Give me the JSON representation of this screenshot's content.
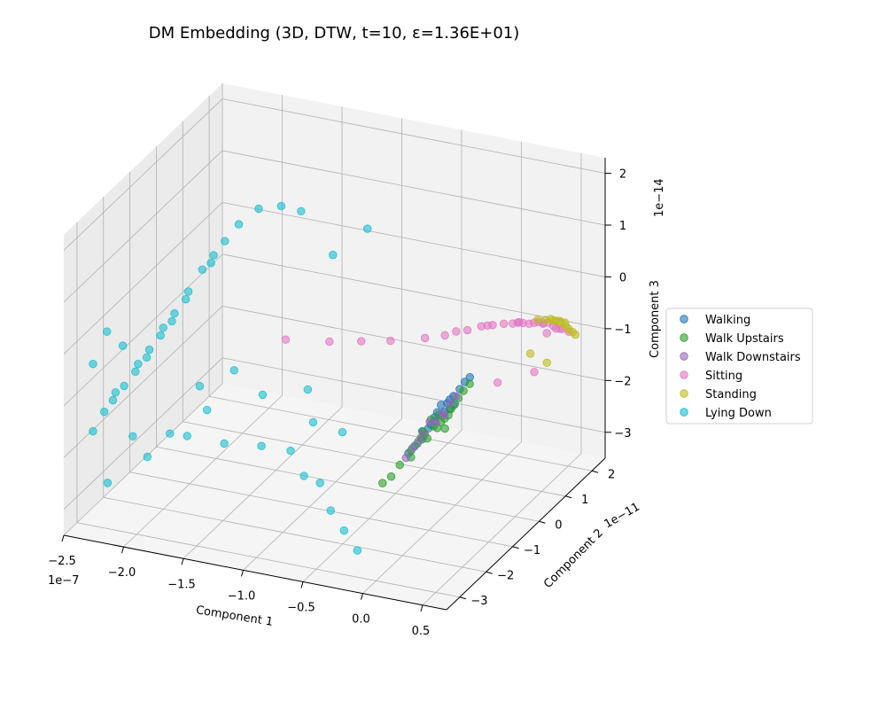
{
  "chart_data": {
    "type": "scatter",
    "title": "DM Embedding (3D, DTW, t=10, ε=1.36E+01)",
    "xlabel": "Component 1",
    "ylabel": "Component 2",
    "zlabel": "Component 3",
    "x_offset_label": "1e−7",
    "y_offset_label": "1e−11",
    "z_offset_label": "1e−14",
    "xlim": [
      -2.5,
      0.7
    ],
    "ylim": [
      -3.5,
      2.5
    ],
    "zlim": [
      -3.5,
      2.3
    ],
    "xticks": [
      -2.5,
      -2.0,
      -1.5,
      -1.0,
      -0.5,
      0.0,
      0.5
    ],
    "xtick_labels": [
      "−2.5",
      "−2.0",
      "−1.5",
      "−1.0",
      "−0.5",
      "0.0",
      "0.5"
    ],
    "yticks": [
      -3,
      -2,
      -1,
      0,
      1,
      2
    ],
    "ytick_labels": [
      "−3",
      "−2",
      "−1",
      "0",
      "1",
      "2"
    ],
    "zticks": [
      -3,
      -2,
      -1,
      0,
      1,
      2
    ],
    "ztick_labels": [
      "−3",
      "−2",
      "−1",
      "0",
      "1",
      "2"
    ],
    "grid": true,
    "legend_position": "right",
    "series": [
      {
        "name": "Walking",
        "color": "#1f77b4",
        "points": [
          [
            0.18,
            -1.5,
            -0.9
          ],
          [
            0.22,
            -1.3,
            -0.8
          ],
          [
            0.15,
            -1.6,
            -1.1
          ],
          [
            0.25,
            -1.2,
            -0.7
          ],
          [
            0.1,
            -1.7,
            -1.2
          ],
          [
            0.2,
            -1.4,
            -1.0
          ],
          [
            0.28,
            -1.1,
            -0.6
          ],
          [
            0.12,
            -1.8,
            -1.3
          ],
          [
            0.24,
            -1.3,
            -0.9
          ],
          [
            0.16,
            -1.5,
            -1.0
          ],
          [
            0.3,
            -1.0,
            -0.5
          ],
          [
            0.08,
            -1.9,
            -1.4
          ],
          [
            0.19,
            -1.4,
            -0.8
          ],
          [
            0.26,
            -1.2,
            -0.85
          ],
          [
            0.14,
            -1.65,
            -1.15
          ],
          [
            0.21,
            -1.35,
            -0.95
          ],
          [
            0.05,
            -2.0,
            -1.5
          ],
          [
            0.32,
            -0.9,
            -0.45
          ],
          [
            0.17,
            -1.55,
            -1.05
          ],
          [
            0.23,
            -1.25,
            -0.75
          ]
        ]
      },
      {
        "name": "Walk Upstairs",
        "color": "#2ca02c",
        "points": [
          [
            0.15,
            -1.6,
            -1.0
          ],
          [
            0.2,
            -1.45,
            -1.1
          ],
          [
            0.1,
            -1.75,
            -1.3
          ],
          [
            0.25,
            -1.3,
            -0.9
          ],
          [
            0.05,
            -1.9,
            -1.5
          ],
          [
            0.18,
            -1.5,
            -1.2
          ],
          [
            0.0,
            -2.1,
            -1.7
          ],
          [
            0.28,
            -1.15,
            -0.75
          ],
          [
            0.12,
            -1.7,
            -1.25
          ],
          [
            0.22,
            -1.4,
            -1.05
          ],
          [
            -0.05,
            -2.2,
            -1.9
          ],
          [
            0.3,
            -1.05,
            -0.65
          ],
          [
            0.08,
            -1.8,
            -1.4
          ],
          [
            0.16,
            -1.55,
            -1.15
          ],
          [
            0.26,
            -1.25,
            -0.85
          ],
          [
            -0.1,
            -2.3,
            -2.0
          ],
          [
            0.2,
            -1.3,
            -1.3
          ],
          [
            0.13,
            -1.65,
            -1.35
          ],
          [
            0.24,
            -1.35,
            -1.0
          ],
          [
            0.06,
            -1.95,
            -1.6
          ],
          [
            0.33,
            -0.95,
            -0.55
          ],
          [
            0.11,
            -1.72,
            -1.2
          ],
          [
            0.19,
            -1.48,
            -0.95
          ]
        ]
      },
      {
        "name": "Walk Downstairs",
        "color": "#9467bd",
        "points": [
          [
            0.14,
            -1.6,
            -1.05
          ],
          [
            0.2,
            -1.4,
            -0.95
          ],
          [
            0.09,
            -1.8,
            -1.35
          ],
          [
            0.24,
            -1.3,
            -0.8
          ],
          [
            0.03,
            -2.0,
            -1.6
          ],
          [
            0.17,
            -1.5,
            -1.1
          ],
          [
            0.27,
            -1.2,
            -0.7
          ],
          [
            0.11,
            -1.7,
            -1.25
          ],
          [
            0.21,
            -1.38,
            -1.0
          ],
          [
            0.06,
            -1.9,
            -1.45
          ]
        ]
      },
      {
        "name": "Sitting",
        "color": "#e377c2",
        "points": [
          [
            0.55,
            0.3,
            0.1
          ],
          [
            0.6,
            0.6,
            0.0
          ],
          [
            0.5,
            0.1,
            0.2
          ],
          [
            0.62,
            0.9,
            -0.2
          ],
          [
            0.45,
            -0.2,
            0.3
          ],
          [
            0.58,
            0.5,
            0.05
          ],
          [
            0.4,
            -0.4,
            0.35
          ],
          [
            0.63,
            1.2,
            -0.4
          ],
          [
            0.52,
            0.2,
            0.15
          ],
          [
            0.35,
            -0.6,
            0.4
          ],
          [
            0.6,
            0.8,
            -0.1
          ],
          [
            0.3,
            -0.9,
            0.45
          ],
          [
            0.57,
            0.4,
            0.08
          ],
          [
            0.25,
            -1.1,
            0.5
          ],
          [
            0.62,
            1.0,
            -0.3
          ],
          [
            0.2,
            -1.3,
            0.5
          ],
          [
            0.48,
            0.0,
            0.22
          ],
          [
            0.64,
            1.4,
            -0.55
          ],
          [
            0.1,
            -1.6,
            0.55
          ],
          [
            -0.1,
            -2.0,
            0.6
          ],
          [
            -0.3,
            -2.2,
            0.6
          ],
          [
            -0.5,
            -2.5,
            0.65
          ],
          [
            -0.8,
            -2.8,
            0.7
          ],
          [
            0.56,
            0.45,
            -0.9
          ],
          [
            0.42,
            -0.3,
            -0.8
          ],
          [
            0.61,
            0.7,
            -0.25
          ],
          [
            0.5,
            0.15,
            0.18
          ],
          [
            0.63,
            1.1,
            -0.35
          ],
          [
            0.38,
            -0.5,
            0.38
          ],
          [
            0.59,
            0.65,
            -0.05
          ]
        ]
      },
      {
        "name": "Standing",
        "color": "#bcbd22",
        "points": [
          [
            0.63,
            1.1,
            -0.2
          ],
          [
            0.64,
            1.3,
            -0.4
          ],
          [
            0.62,
            0.9,
            -0.1
          ],
          [
            0.65,
            1.5,
            -0.6
          ],
          [
            0.6,
            0.7,
            0.0
          ],
          [
            0.64,
            1.25,
            -0.3
          ],
          [
            0.58,
            0.5,
            0.1
          ],
          [
            0.65,
            1.6,
            -0.7
          ],
          [
            0.61,
            0.85,
            -0.05
          ],
          [
            0.63,
            1.15,
            -0.25
          ],
          [
            0.55,
            0.35,
            -0.5
          ],
          [
            0.64,
            1.4,
            -0.5
          ],
          [
            0.6,
            0.75,
            -0.85
          ],
          [
            0.62,
            1.0,
            -0.15
          ]
        ]
      },
      {
        "name": "Lying Down",
        "color": "#17becf",
        "points": [
          [
            -2.2,
            -3.0,
            -1.0
          ],
          [
            -2.1,
            -2.5,
            -0.5
          ],
          [
            -2.0,
            -2.0,
            0.0
          ],
          [
            -1.9,
            -1.5,
            0.5
          ],
          [
            -2.3,
            -3.3,
            -1.5
          ],
          [
            -1.8,
            -1.0,
            1.0
          ],
          [
            -2.15,
            -2.8,
            -0.8
          ],
          [
            -1.95,
            -1.8,
            0.2
          ],
          [
            -2.05,
            -2.3,
            -0.3
          ],
          [
            -1.85,
            -1.2,
            0.8
          ],
          [
            -2.25,
            -3.1,
            -1.2
          ],
          [
            -1.75,
            -0.8,
            1.2
          ],
          [
            -2.1,
            -2.6,
            -0.6
          ],
          [
            -1.9,
            -1.6,
            0.4
          ],
          [
            -2.0,
            -2.1,
            -0.1
          ],
          [
            -1.8,
            -1.1,
            0.9
          ],
          [
            -2.2,
            -2.9,
            -0.9
          ],
          [
            -1.7,
            -0.5,
            1.4
          ],
          [
            -2.05,
            -2.4,
            -0.4
          ],
          [
            -1.95,
            -1.9,
            0.1
          ],
          [
            -1.6,
            -0.2,
            1.6
          ],
          [
            -1.5,
            0.2,
            1.5
          ],
          [
            -1.4,
            0.5,
            1.3
          ],
          [
            -2.2,
            -3.2,
            -2.5
          ],
          [
            -2.0,
            -2.6,
            -2.2
          ],
          [
            -1.8,
            -2.0,
            -2.0
          ],
          [
            -1.6,
            -1.5,
            -2.3
          ],
          [
            -1.4,
            -1.0,
            -2.5
          ],
          [
            -1.2,
            -0.8,
            -2.6
          ],
          [
            -1.0,
            -1.2,
            -2.8
          ],
          [
            -0.8,
            -1.5,
            -2.7
          ],
          [
            -0.6,
            -2.0,
            -2.9
          ],
          [
            -1.3,
            0.3,
            -2.0
          ],
          [
            -1.1,
            -0.4,
            -2.2
          ],
          [
            -0.9,
            -0.2,
            -2.4
          ],
          [
            -1.5,
            -0.5,
            -1.8
          ],
          [
            -2.1,
            -2.7,
            -1.8
          ],
          [
            -1.9,
            -2.2,
            -1.9
          ],
          [
            -1.7,
            -1.7,
            -1.6
          ],
          [
            -0.4,
            -2.4,
            -3.0
          ],
          [
            -0.2,
            -2.8,
            -3.1
          ],
          [
            -1.2,
            0.8,
            0.4
          ],
          [
            -1.0,
            1.2,
            0.8
          ],
          [
            -2.3,
            -3.3,
            -0.2
          ],
          [
            -2.25,
            -3.0,
            0.3
          ],
          [
            -1.85,
            -1.3,
            -1.4
          ],
          [
            -1.65,
            -0.9,
            -1.2
          ],
          [
            -2.15,
            -2.85,
            0.0
          ]
        ]
      }
    ]
  }
}
